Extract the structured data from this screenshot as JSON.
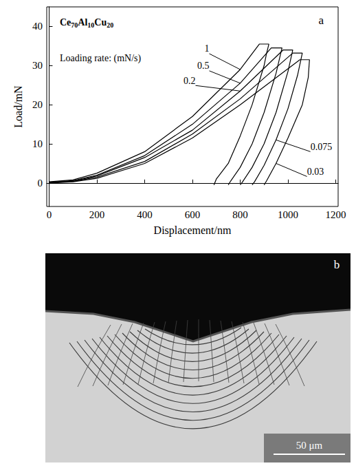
{
  "chart_data": {
    "type": "line",
    "panel_label": "a",
    "title": "Ce70Al10Cu20",
    "annotations": [
      "Loading rate: (mN/s)"
    ],
    "x_label": "Displacement/nm",
    "y_label": "Load/mN",
    "xlim": [
      -10,
      1210
    ],
    "xticks": [
      0,
      200,
      400,
      600,
      800,
      1000,
      1200
    ],
    "ylim": [
      -6,
      45
    ],
    "yticks": [
      0,
      10,
      20,
      30,
      40
    ],
    "grid": false,
    "line_style": "solid",
    "series": [
      {
        "name": "1",
        "color": "#000000",
        "x": [
          0,
          100,
          200,
          400,
          600,
          800,
          880,
          920,
          910,
          900,
          850,
          800,
          750,
          700,
          690
        ],
        "values": [
          0.3,
          0.8,
          2.5,
          8,
          17,
          29,
          35.5,
          35.5,
          33,
          30,
          20,
          12,
          5,
          1,
          -0.5
        ]
      },
      {
        "name": "0.5",
        "color": "#000000",
        "x": [
          0,
          100,
          200,
          400,
          600,
          800,
          930,
          975,
          950,
          900,
          850,
          800,
          760,
          750
        ],
        "values": [
          0.2,
          0.6,
          2,
          7,
          15,
          25.5,
          34.5,
          34.5,
          28,
          18,
          10,
          4,
          0.5,
          -0.5
        ]
      },
      {
        "name": "0.2",
        "color": "#000000",
        "x": [
          0,
          100,
          200,
          400,
          600,
          800,
          980,
          1020,
          1000,
          950,
          900,
          850,
          810,
          800
        ],
        "values": [
          0.1,
          0.5,
          1.8,
          6.5,
          13.5,
          23.5,
          34,
          34,
          28.5,
          18,
          10,
          4,
          0.3,
          -0.5
        ]
      },
      {
        "name": "0.075",
        "color": "#000000",
        "x": [
          0,
          100,
          200,
          400,
          600,
          800,
          1020,
          1060,
          1040,
          1000,
          950,
          900,
          860,
          850
        ],
        "values": [
          0.1,
          0.4,
          1.5,
          5.5,
          12.5,
          21.5,
          33.2,
          33.2,
          27.5,
          19,
          11,
          4.5,
          0.3,
          -0.5
        ]
      },
      {
        "name": "0.03",
        "color": "#000000",
        "x": [
          0,
          100,
          200,
          400,
          600,
          800,
          1050,
          1090,
          1085,
          1060,
          1000,
          950,
          910,
          900
        ],
        "values": [
          0,
          0.3,
          1.2,
          5,
          11.5,
          20,
          31.5,
          31.5,
          27,
          20,
          11.5,
          5,
          0.5,
          -0.5
        ]
      }
    ]
  },
  "image_panel": {
    "label": "b",
    "scale_bar": "50 μm"
  }
}
